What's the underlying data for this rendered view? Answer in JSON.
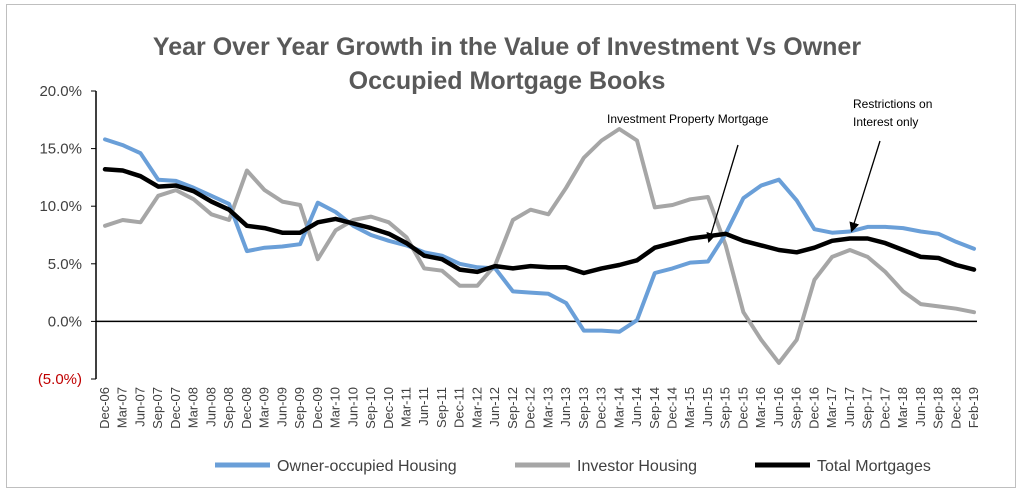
{
  "chart_data": {
    "type": "line",
    "title": "Year Over Year Growth in the Value of Investment Vs Owner Occupied Mortgage Books",
    "title_lines": [
      "Year Over Year Growth in the Value of Investment Vs Owner",
      "Occupied Mortgage Books"
    ],
    "y_ticks": [
      {
        "value": 20,
        "label": "20.0%"
      },
      {
        "value": 15,
        "label": "15.0%"
      },
      {
        "value": 10,
        "label": "10.0%"
      },
      {
        "value": 5,
        "label": "5.0%"
      },
      {
        "value": 0,
        "label": "0.0%"
      },
      {
        "value": -5,
        "label": "(5.0%)"
      }
    ],
    "ylim": [
      -5,
      20
    ],
    "grid": false,
    "legend_position": "bottom",
    "categories": [
      "Dec-06",
      "Mar-07",
      "Jun-07",
      "Sep-07",
      "Dec-07",
      "Mar-08",
      "Jun-08",
      "Sep-08",
      "Dec-08",
      "Mar-09",
      "Jun-09",
      "Sep-09",
      "Dec-09",
      "Mar-10",
      "Jun-10",
      "Sep-10",
      "Dec-10",
      "Mar-11",
      "Jun-11",
      "Sep-11",
      "Dec-11",
      "Mar-12",
      "Jun-12",
      "Sep-12",
      "Dec-12",
      "Mar-13",
      "Jun-13",
      "Sep-13",
      "Dec-13",
      "Mar-14",
      "Jun-14",
      "Sep-14",
      "Dec-14",
      "Mar-15",
      "Jun-15",
      "Sep-15",
      "Dec-15",
      "Mar-16",
      "Jun-16",
      "Sep-16",
      "Dec-16",
      "Mar-17",
      "Jun-17",
      "Sep-17",
      "Dec-17",
      "Mar-18",
      "Jun-18",
      "Sep-18",
      "Dec-18",
      "Feb-19"
    ],
    "series": [
      {
        "name": "Owner-occupied Housing",
        "color": "#6a9fd8",
        "values": [
          15.8,
          15.3,
          14.6,
          12.3,
          12.2,
          11.6,
          10.9,
          10.2,
          6.1,
          6.4,
          6.5,
          6.7,
          10.3,
          9.5,
          8.3,
          7.5,
          7.0,
          6.6,
          6.0,
          5.7,
          5.0,
          4.7,
          4.6,
          2.6,
          2.5,
          2.4,
          1.6,
          -0.8,
          -0.8,
          -0.9,
          0.1,
          4.2,
          4.6,
          5.1,
          5.2,
          7.6,
          10.7,
          11.8,
          12.3,
          10.5,
          8.0,
          7.7,
          7.8,
          8.2,
          8.2,
          8.1,
          7.8,
          7.6,
          6.9,
          6.3
        ]
      },
      {
        "name": "Investor Housing",
        "color": "#a6a6a6",
        "values": [
          8.3,
          8.8,
          8.6,
          10.9,
          11.4,
          10.6,
          9.3,
          8.8,
          13.1,
          11.4,
          10.4,
          10.1,
          5.4,
          7.9,
          8.8,
          9.1,
          8.6,
          7.3,
          4.6,
          4.4,
          3.1,
          3.1,
          4.9,
          8.8,
          9.7,
          9.3,
          11.6,
          14.2,
          15.7,
          16.7,
          15.7,
          9.9,
          10.1,
          10.6,
          10.8,
          6.6,
          0.8,
          -1.6,
          -3.6,
          -1.6,
          3.6,
          5.6,
          6.2,
          5.6,
          4.3,
          2.6,
          1.5,
          1.3,
          1.1,
          0.8
        ]
      },
      {
        "name": "Total Mortgages",
        "color": "#000000",
        "values": [
          13.2,
          13.1,
          12.6,
          11.7,
          11.8,
          11.3,
          10.4,
          9.7,
          8.3,
          8.1,
          7.7,
          7.7,
          8.6,
          8.9,
          8.5,
          8.1,
          7.6,
          6.8,
          5.7,
          5.4,
          4.5,
          4.3,
          4.8,
          4.6,
          4.8,
          4.7,
          4.7,
          4.2,
          4.6,
          4.9,
          5.3,
          6.4,
          6.8,
          7.2,
          7.4,
          7.6,
          7.0,
          6.6,
          6.2,
          6.0,
          6.4,
          7.0,
          7.2,
          7.2,
          6.8,
          6.2,
          5.6,
          5.5,
          4.9,
          4.5
        ]
      }
    ],
    "annotations": [
      {
        "text": "Investment Property Mortgage",
        "arrow_to": {
          "category": "Jun-15",
          "value": 6.8
        }
      },
      {
        "text_lines": [
          "Restrictions on",
          "Interest only"
        ],
        "arrow_to": {
          "category": "Jun-17",
          "value": 7.8
        }
      }
    ]
  }
}
